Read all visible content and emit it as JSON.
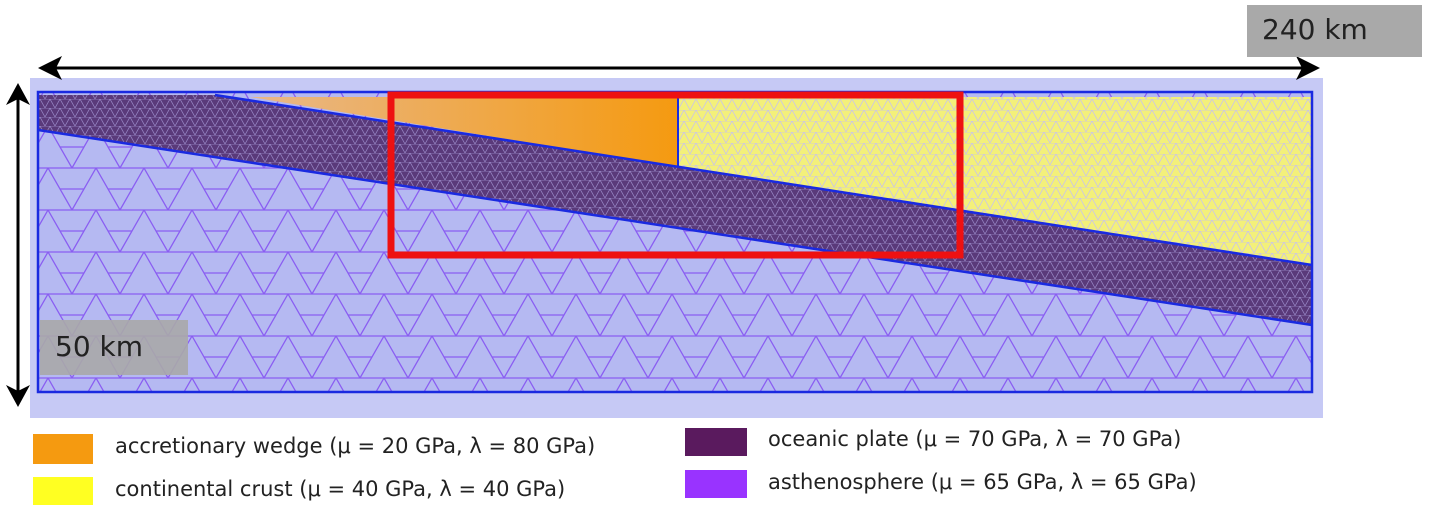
{
  "scale": {
    "width_label": "240 km",
    "depth_label": "50 km"
  },
  "legend": {
    "items": [
      {
        "label": "accretionary wedge (μ = 20 GPa, λ = 80 GPa)"
      },
      {
        "label": "continental crust (μ = 40 GPa, λ = 40 GPa)"
      },
      {
        "label": "oceanic plate (μ = 70 GPa, λ = 70 GPa)"
      },
      {
        "label": "asthenosphere (μ = 65 GPa, λ = 65 GPa)"
      }
    ]
  }
}
